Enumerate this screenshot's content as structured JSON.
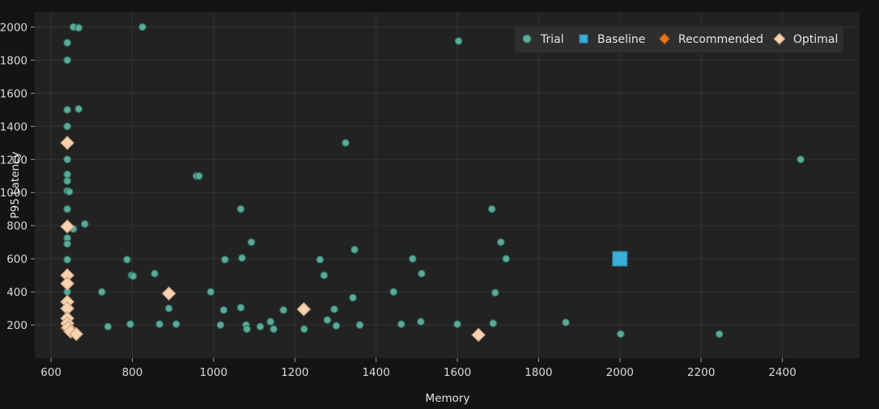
{
  "chart_data": {
    "type": "scatter",
    "xlabel": "Memory",
    "ylabel": "P95 Latency",
    "xlim": [
      560,
      2590
    ],
    "ylim": [
      0,
      2090
    ],
    "xticks": [
      600,
      800,
      1000,
      1200,
      1400,
      1600,
      1800,
      2000,
      2200,
      2400
    ],
    "yticks": [
      200,
      400,
      600,
      800,
      1000,
      1200,
      1400,
      1600,
      1800,
      2000
    ],
    "grid": true,
    "legend_position": "top-right",
    "colors": {
      "background": "#141414",
      "plot_background": "#222222",
      "grid": "#333333",
      "trial": "#5aab9a",
      "trial_edge": "#2f6b5f",
      "baseline": "#3aaed8",
      "recommended": "#e8771c",
      "optimal": "#f8d3b0"
    },
    "legend": [
      {
        "label": "Trial",
        "marker": "circle"
      },
      {
        "label": "Baseline",
        "marker": "square"
      },
      {
        "label": "Recommended",
        "marker": "diamond"
      },
      {
        "label": "Optimal",
        "marker": "diamond"
      }
    ],
    "series": [
      {
        "name": "Trial",
        "marker": "circle",
        "points": [
          [
            655,
            2000
          ],
          [
            668,
            1995
          ],
          [
            825,
            2000
          ],
          [
            640,
            1905
          ],
          [
            640,
            1800
          ],
          [
            640,
            1500
          ],
          [
            668,
            1505
          ],
          [
            640,
            1400
          ],
          [
            640,
            1300
          ],
          [
            640,
            1200
          ],
          [
            640,
            1110
          ],
          [
            640,
            1070
          ],
          [
            640,
            1010
          ],
          [
            645,
            1005
          ],
          [
            640,
            900
          ],
          [
            683,
            810
          ],
          [
            655,
            780
          ],
          [
            640,
            725
          ],
          [
            640,
            690
          ],
          [
            640,
            595
          ],
          [
            640,
            500
          ],
          [
            640,
            400
          ],
          [
            645,
            300
          ],
          [
            640,
            200
          ],
          [
            958,
            1100
          ],
          [
            964,
            1100
          ],
          [
            1067,
            900
          ],
          [
            1070,
            605
          ],
          [
            1028,
            595
          ],
          [
            1093,
            700
          ],
          [
            787,
            595
          ],
          [
            855,
            510
          ],
          [
            798,
            500
          ],
          [
            802,
            495
          ],
          [
            725,
            400
          ],
          [
            993,
            400
          ],
          [
            890,
            300
          ],
          [
            1025,
            290
          ],
          [
            795,
            205
          ],
          [
            740,
            190
          ],
          [
            867,
            205
          ],
          [
            908,
            205
          ],
          [
            1017,
            200
          ],
          [
            1067,
            305
          ],
          [
            1080,
            200
          ],
          [
            1082,
            175
          ],
          [
            1115,
            190
          ],
          [
            1140,
            220
          ],
          [
            1148,
            175
          ],
          [
            1172,
            290
          ],
          [
            1223,
            175
          ],
          [
            1262,
            595
          ],
          [
            1272,
            500
          ],
          [
            1280,
            230
          ],
          [
            1297,
            295
          ],
          [
            1302,
            195
          ],
          [
            1325,
            1300
          ],
          [
            1343,
            365
          ],
          [
            1347,
            655
          ],
          [
            1360,
            200
          ],
          [
            1443,
            400
          ],
          [
            1462,
            205
          ],
          [
            1490,
            600
          ],
          [
            1510,
            220
          ],
          [
            1512,
            510
          ],
          [
            1600,
            205
          ],
          [
            1603,
            1915
          ],
          [
            1685,
            900
          ],
          [
            1688,
            210
          ],
          [
            1693,
            395
          ],
          [
            1707,
            700
          ],
          [
            1720,
            600
          ],
          [
            1867,
            215
          ],
          [
            2002,
            145
          ],
          [
            2245,
            145
          ],
          [
            2445,
            1200
          ]
        ]
      },
      {
        "name": "Baseline",
        "marker": "square",
        "points": [
          [
            2000,
            600
          ]
        ]
      },
      {
        "name": "Recommended",
        "marker": "diamond",
        "points": [
          [
            640,
            180
          ]
        ]
      },
      {
        "name": "Optimal",
        "marker": "diamond",
        "points": [
          [
            640,
            1300
          ],
          [
            640,
            795
          ],
          [
            640,
            500
          ],
          [
            640,
            450
          ],
          [
            640,
            340
          ],
          [
            640,
            300
          ],
          [
            640,
            240
          ],
          [
            640,
            210
          ],
          [
            642,
            185
          ],
          [
            648,
            160
          ],
          [
            662,
            145
          ],
          [
            890,
            390
          ],
          [
            1222,
            295
          ],
          [
            1652,
            140
          ]
        ]
      }
    ]
  }
}
